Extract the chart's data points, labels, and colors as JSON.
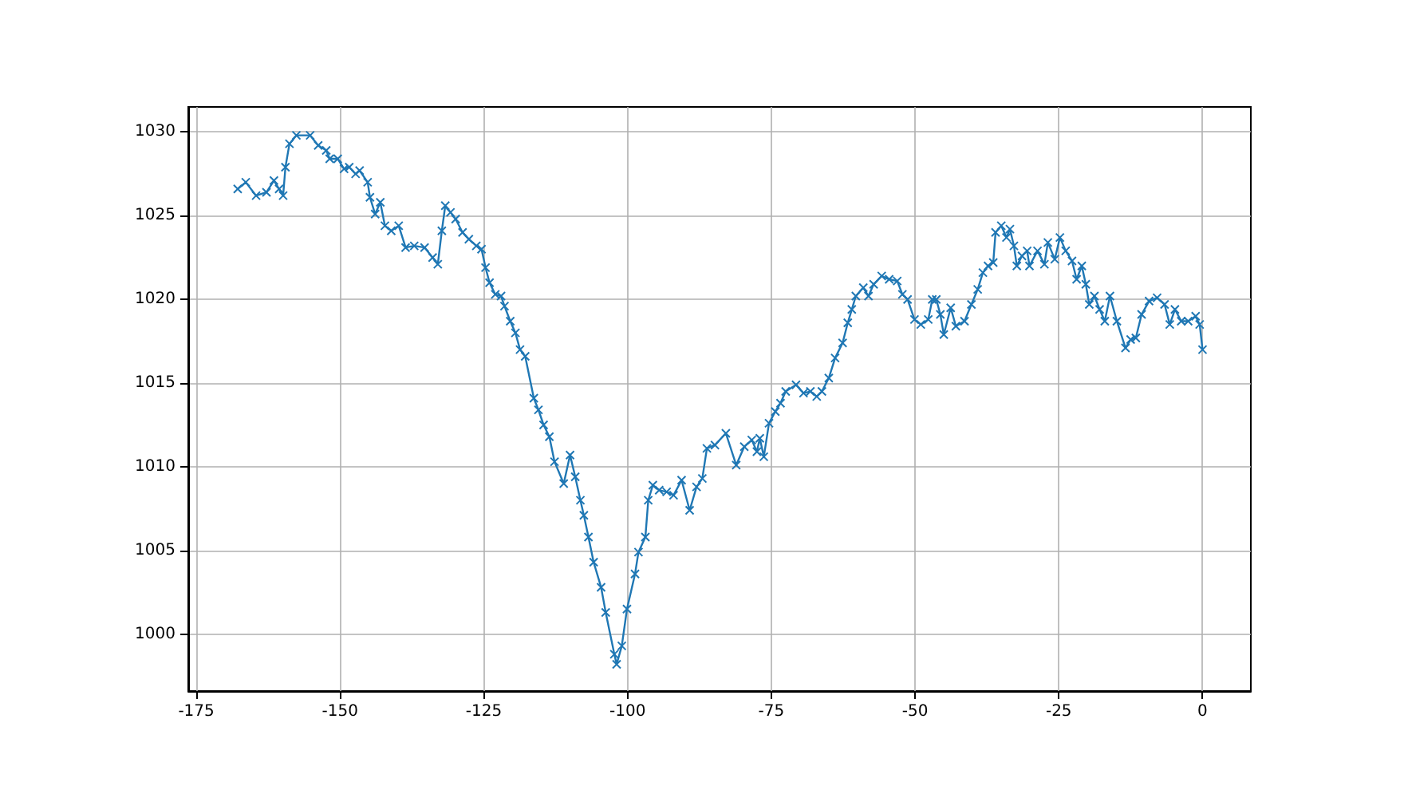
{
  "chart_data": {
    "type": "line",
    "x": [
      -167.8,
      -166.4,
      -164.6,
      -162.8,
      -161.5,
      -160.6,
      -159.9,
      -159.5,
      -158.8,
      -157.6,
      -155.2,
      -153.8,
      -152.4,
      -151.8,
      -150.4,
      -149.3,
      -148.4,
      -147.3,
      -146.6,
      -145.2,
      -144.8,
      -143.9,
      -143.0,
      -142.2,
      -141.1,
      -139.8,
      -138.6,
      -137.1,
      -135.3,
      -133.9,
      -133.0,
      -132.3,
      -131.7,
      -130.8,
      -129.9,
      -128.7,
      -127.6,
      -126.3,
      -125.4,
      -124.7,
      -124.0,
      -123.0,
      -122.0,
      -121.4,
      -120.4,
      -119.5,
      -118.7,
      -117.8,
      -116.3,
      -115.5,
      -114.6,
      -113.6,
      -112.7,
      -111.1,
      -110.0,
      -109.1,
      -108.2,
      -107.6,
      -106.8,
      -105.9,
      -104.6,
      -103.8,
      -102.3,
      -101.9,
      -101.0,
      -100.1,
      -98.7,
      -98.1,
      -96.9,
      -96.4,
      -95.6,
      -94.5,
      -93.2,
      -92.0,
      -90.6,
      -89.2,
      -88.0,
      -87.0,
      -86.2,
      -84.8,
      -82.9,
      -81.1,
      -79.7,
      -78.4,
      -77.5,
      -77.0,
      -76.3,
      -75.4,
      -74.3,
      -73.4,
      -72.5,
      -70.7,
      -69.4,
      -68.2,
      -67.1,
      -66.2,
      -65.0,
      -63.9,
      -62.6,
      -61.7,
      -61.0,
      -60.3,
      -59.0,
      -58.1,
      -57.2,
      -55.8,
      -54.5,
      -53.1,
      -52.2,
      -51.3,
      -50.1,
      -49.0,
      -47.7,
      -47.0,
      -46.3,
      -45.6,
      -45.0,
      -43.8,
      -42.9,
      -41.4,
      -40.2,
      -39.1,
      -38.2,
      -37.3,
      -36.4,
      -36.0,
      -35.0,
      -34.1,
      -33.5,
      -32.8,
      -32.3,
      -31.4,
      -30.5,
      -30.1,
      -28.7,
      -27.5,
      -26.9,
      -25.7,
      -24.8,
      -23.8,
      -22.7,
      -21.9,
      -21.0,
      -20.3,
      -19.7,
      -18.8,
      -17.9,
      -17.0,
      -16.1,
      -14.9,
      -13.4,
      -12.5,
      -11.6,
      -10.6,
      -9.3,
      -7.9,
      -6.6,
      -5.7,
      -4.8,
      -3.7,
      -2.5,
      -1.2,
      -0.5,
      0
    ],
    "series": [
      {
        "color": "#1f77b4",
        "values": [
          1026.6,
          1027.0,
          1026.2,
          1026.4,
          1027.1,
          1026.6,
          1026.2,
          1027.9,
          1029.3,
          1029.8,
          1029.8,
          1029.2,
          1028.9,
          1028.4,
          1028.4,
          1027.8,
          1027.9,
          1027.5,
          1027.7,
          1027.0,
          1026.1,
          1025.1,
          1025.8,
          1024.4,
          1024.1,
          1024.4,
          1023.1,
          1023.2,
          1023.1,
          1022.5,
          1022.1,
          1024.1,
          1025.6,
          1025.2,
          1024.8,
          1024.0,
          1023.6,
          1023.2,
          1023.0,
          1021.9,
          1021.0,
          1020.3,
          1020.2,
          1019.6,
          1018.7,
          1018.0,
          1017.0,
          1016.6,
          1014.1,
          1013.4,
          1012.5,
          1011.8,
          1010.3,
          1009.0,
          1010.7,
          1009.4,
          1008.0,
          1007.1,
          1005.8,
          1004.3,
          1002.8,
          1001.3,
          998.8,
          998.2,
          999.3,
          1001.5,
          1003.6,
          1004.9,
          1005.8,
          1008.0,
          1008.9,
          1008.6,
          1008.5,
          1008.3,
          1009.2,
          1007.4,
          1008.8,
          1009.3,
          1011.1,
          1011.3,
          1012.0,
          1010.1,
          1011.2,
          1011.6,
          1010.9,
          1011.7,
          1010.6,
          1012.6,
          1013.3,
          1013.8,
          1014.5,
          1014.9,
          1014.4,
          1014.5,
          1014.2,
          1014.5,
          1015.3,
          1016.5,
          1017.4,
          1018.6,
          1019.4,
          1020.2,
          1020.7,
          1020.2,
          1020.9,
          1021.4,
          1021.2,
          1021.1,
          1020.3,
          1020.0,
          1018.8,
          1018.5,
          1018.8,
          1020.0,
          1020.0,
          1019.1,
          1017.9,
          1019.5,
          1018.4,
          1018.7,
          1019.7,
          1020.6,
          1021.6,
          1022.0,
          1022.2,
          1024.0,
          1024.4,
          1023.7,
          1024.2,
          1023.2,
          1022.0,
          1022.6,
          1022.9,
          1022.0,
          1022.9,
          1022.1,
          1023.4,
          1022.4,
          1023.7,
          1022.9,
          1022.3,
          1021.2,
          1022.0,
          1020.9,
          1019.7,
          1020.2,
          1019.4,
          1018.7,
          1020.2,
          1018.7,
          1017.1,
          1017.6,
          1017.7,
          1019.1,
          1019.9,
          1020.1,
          1019.7,
          1018.5,
          1019.4,
          1018.7,
          1018.7,
          1019.0,
          1018.5,
          1017.0
        ]
      }
    ],
    "xlim": [
      -176.4,
      8.4
    ],
    "xticks": [
      -175,
      -150,
      -125,
      -100,
      -75,
      -50,
      -25,
      0
    ],
    "ylim": [
      996.6,
      1031.5
    ],
    "yticks": [
      1000,
      1005,
      1010,
      1015,
      1020,
      1025,
      1030
    ],
    "grid": true,
    "marker": "cross",
    "line_style": "solid"
  }
}
